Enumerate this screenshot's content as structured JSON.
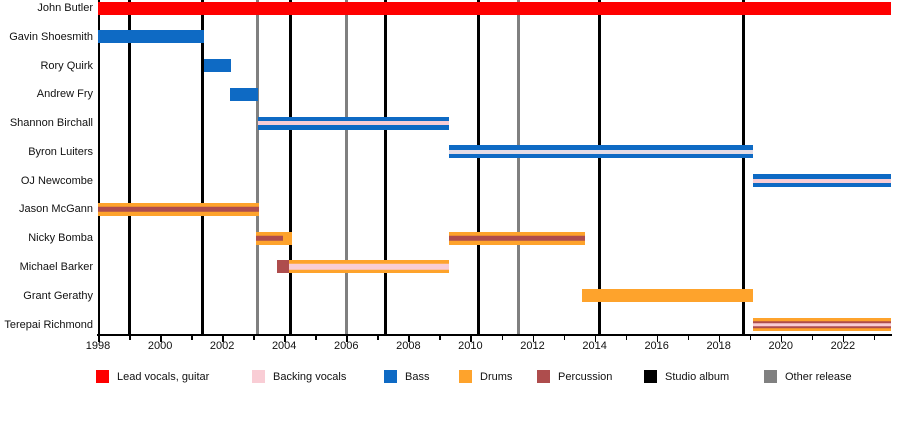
{
  "chart_data": {
    "type": "gantt",
    "title": "",
    "xlim": [
      1998,
      2023.55
    ],
    "x_tick_labels": [
      "1998",
      "2000",
      "2002",
      "2004",
      "2006",
      "2008",
      "2010",
      "2012",
      "2014",
      "2016",
      "2018",
      "2020",
      "2022"
    ],
    "colors": {
      "lead_vocals_guitar": "#fe0000",
      "backing_vocals": "#f9cdd5",
      "backing_vocals_pale": "#e3dce6",
      "bass": "#0e6ac4",
      "drums": "#fea32c",
      "percussion": "#ae4d4d",
      "studio_album": "#000000",
      "other_release": "#808080"
    },
    "members": [
      {
        "name": "John Butler",
        "bars": [
          {
            "start": 1998,
            "end": 2023.55,
            "color_key": "lead_vocals_guitar"
          }
        ]
      },
      {
        "name": "Gavin Shoesmith",
        "bars": [
          {
            "start": 1998,
            "end": 2001.4,
            "color_key": "bass"
          }
        ]
      },
      {
        "name": "Rory Quirk",
        "bars": [
          {
            "start": 2001.4,
            "end": 2002.3,
            "color_key": "bass"
          }
        ]
      },
      {
        "name": "Andrew Fry",
        "bars": [
          {
            "start": 2002.25,
            "end": 2003.15,
            "color_key": "bass"
          }
        ]
      },
      {
        "name": "Shannon Birchall",
        "bars": [
          {
            "start": 2003.15,
            "end": 2009.3,
            "color_key": "bass",
            "stripes": [
              {
                "color_key": "backing_vocals",
                "height": 4
              }
            ]
          }
        ]
      },
      {
        "name": "Byron Luiters",
        "bars": [
          {
            "start": 2009.3,
            "end": 2019.1,
            "color_key": "bass",
            "stripes": [
              {
                "color_key": "backing_vocals_pale",
                "height": 4
              }
            ]
          }
        ]
      },
      {
        "name": "OJ Newcombe",
        "bars": [
          {
            "start": 2019.1,
            "end": 2023.55,
            "color_key": "bass",
            "stripes": [
              {
                "color_key": "backing_vocals",
                "height": 4
              }
            ]
          }
        ]
      },
      {
        "name": "Jason McGann",
        "bars": [
          {
            "start": 1998,
            "end": 2003.2,
            "color_key": "drums",
            "stripes": [
              {
                "color_key": "percussion",
                "height": 4.5
              }
            ]
          }
        ]
      },
      {
        "name": "Nicky Bomba",
        "bars": [
          {
            "start": 2003.1,
            "end": 2004.25,
            "color_key": "drums",
            "stripes": [
              {
                "color_key": "percussion",
                "height": 4.5,
                "from": 2003.1,
                "to": 2003.95
              }
            ]
          },
          {
            "start": 2009.3,
            "end": 2013.7,
            "color_key": "drums",
            "stripes": [
              {
                "color_key": "percussion",
                "height": 4.5
              }
            ]
          }
        ]
      },
      {
        "name": "Michael Barker",
        "bars": [
          {
            "start": 2003.75,
            "end": 2009.3,
            "color_key": "drums",
            "solid_segments": [
              {
                "color_key": "percussion",
                "from": 2003.75,
                "to": 2004.15
              }
            ],
            "stripes": [
              {
                "color_key": "backing_vocals",
                "height": 6.5,
                "from": 2004.15,
                "to": 2009.3
              }
            ]
          }
        ]
      },
      {
        "name": "Grant Gerathy",
        "bars": [
          {
            "start": 2013.6,
            "end": 2019.1,
            "color_key": "drums"
          }
        ]
      },
      {
        "name": "Terepai Richmond",
        "bars": [
          {
            "start": 2019.1,
            "end": 2023.55,
            "color_key": "drums",
            "stripes": [
              {
                "color_key": "percussion",
                "height": 7.5
              },
              {
                "color_key": "backing_vocals",
                "height": 3.5
              }
            ]
          }
        ]
      }
    ],
    "events": {
      "studio_albums": [
        1999.0,
        2001.35,
        2004.2,
        2007.25,
        2010.25,
        2014.15,
        2018.8
      ],
      "other_releases": [
        2003.15,
        2006.0,
        2011.55
      ]
    },
    "legend": [
      {
        "label": "Lead vocals, guitar",
        "color_key": "lead_vocals_guitar"
      },
      {
        "label": "Backing vocals",
        "color_key": "backing_vocals"
      },
      {
        "label": "Bass",
        "color_key": "bass"
      },
      {
        "label": "Drums",
        "color_key": "drums"
      },
      {
        "label": "Percussion",
        "color_key": "percussion"
      },
      {
        "label": "Studio album",
        "color_key": "studio_album"
      },
      {
        "label": "Other release",
        "color_key": "other_release"
      }
    ]
  }
}
